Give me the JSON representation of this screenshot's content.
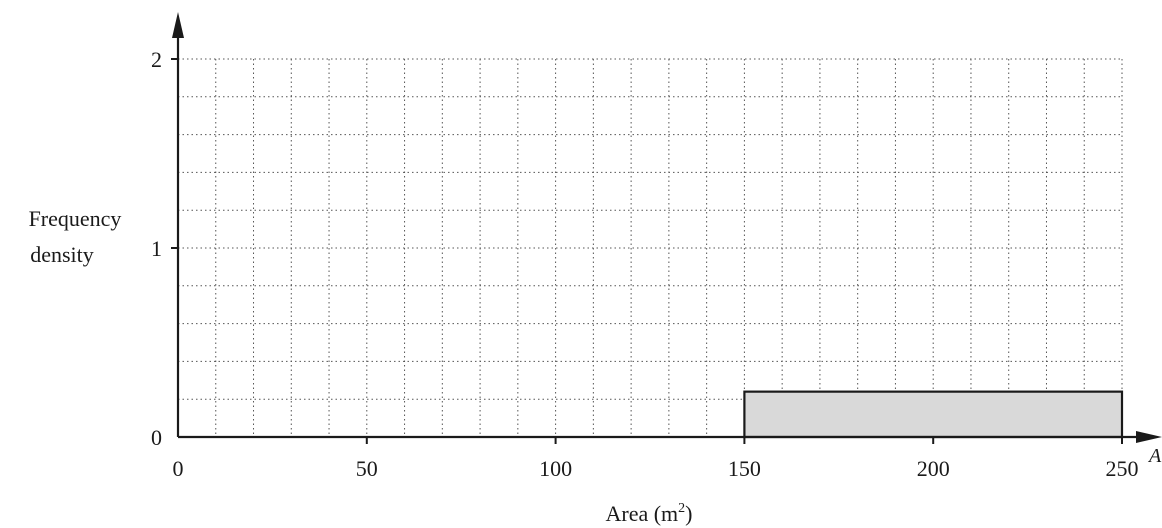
{
  "chart_data": {
    "type": "histogram",
    "xlabel": "Area (m²)",
    "xlabel_base": "Area (m",
    "xlabel_sup": "2",
    "xlabel_close": ")",
    "ylabel_line1": "Frequency",
    "ylabel_line2": "density",
    "x_axis_end_label": "A",
    "xlim": [
      0,
      250
    ],
    "ylim": [
      0,
      2
    ],
    "x_ticks": [
      0,
      50,
      100,
      150,
      200,
      250
    ],
    "y_ticks": [
      0,
      1,
      2
    ],
    "x_minor_step": 10,
    "y_minor_step": 0.2,
    "grid": "dotted",
    "bars": [
      {
        "x_start": 150,
        "x_end": 250,
        "frequency_density": 0.24
      }
    ],
    "bar_fill": "#d9d9d9",
    "axis_color": "#1a1a1a",
    "grid_color": "#555555"
  }
}
